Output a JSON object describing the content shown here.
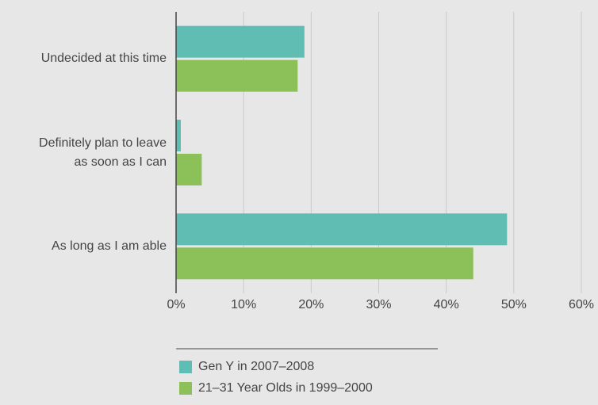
{
  "chart_data": {
    "type": "hbar",
    "categories": [
      "Undecided at this time",
      "Definitely plan to leave\nas soon as I can",
      "As long as I am able"
    ],
    "series": [
      {
        "name": "Gen Y in 2007–2008",
        "color": "#5fbdb4",
        "values": [
          19,
          0.7,
          49
        ]
      },
      {
        "name": "21–31 Year Olds in 1999–2000",
        "color": "#8cc15a",
        "values": [
          18,
          3.8,
          44
        ]
      }
    ],
    "xlim": [
      0,
      60
    ],
    "xticks": [
      {
        "value": 0,
        "label": "0%"
      },
      {
        "value": 10,
        "label": "10%"
      },
      {
        "value": 20,
        "label": "20%"
      },
      {
        "value": 30,
        "label": "30%"
      },
      {
        "value": 40,
        "label": "40%"
      },
      {
        "value": 50,
        "label": "50%"
      },
      {
        "value": 60,
        "label": "60%"
      }
    ],
    "grid": true
  }
}
